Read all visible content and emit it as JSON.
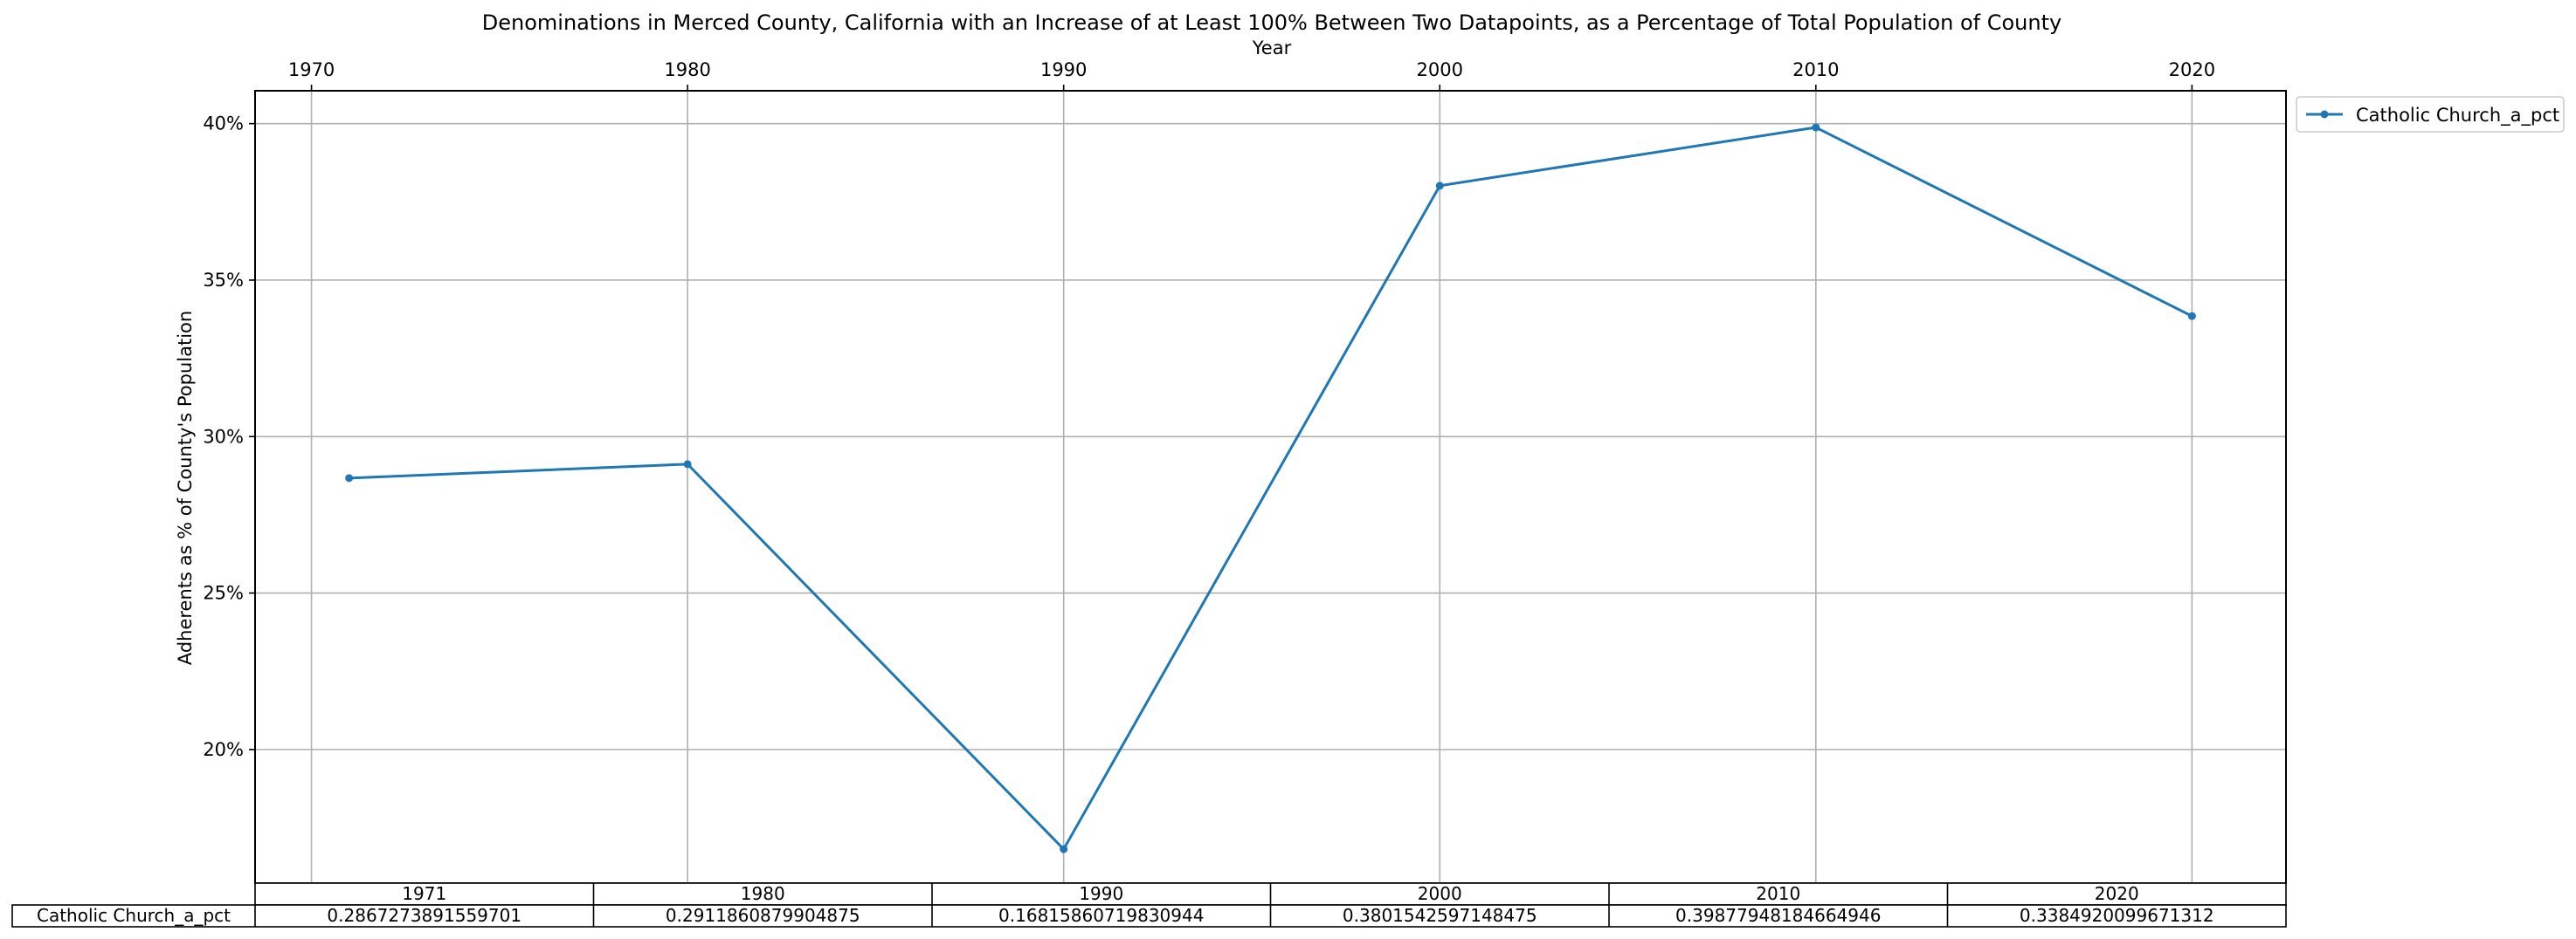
{
  "chart_data": {
    "type": "line",
    "title": "Denominations in Merced County, California with an Increase of at Least 100% Between Two Datapoints, as a Percentage of Total Population of County",
    "xlabel": "Year",
    "ylabel": "Adherents as % of County's Population",
    "x_ticks": [
      "1970",
      "1980",
      "1990",
      "2000",
      "2010",
      "2020"
    ],
    "x_tick_values": [
      1970,
      1980,
      1990,
      2000,
      2010,
      2020
    ],
    "y_ticks": [
      "20%",
      "25%",
      "30%",
      "35%",
      "40%"
    ],
    "y_tick_values": [
      0.2,
      0.25,
      0.3,
      0.35,
      0.4
    ],
    "xlim": [
      1968.5,
      2022.5
    ],
    "ylim": [
      0.1573,
      0.4105
    ],
    "grid": true,
    "x_axis_position": "top",
    "legend_position": "outside-top-right",
    "color": "#1f77b4",
    "x": [
      1971,
      1980,
      1990,
      2000,
      2010,
      2020
    ],
    "series": [
      {
        "name": "Catholic Church_a_pct",
        "values": [
          0.2867273891559701,
          0.2911860879904875,
          0.16815860719830944,
          0.3801542597148475,
          0.39877948184664946,
          0.3384920099671312
        ]
      }
    ],
    "table": {
      "columns": [
        "1971",
        "1980",
        "1990",
        "2000",
        "2010",
        "2020"
      ],
      "row_label": "Catholic Church_a_pct",
      "cells": [
        "0.2867273891559701",
        "0.2911860879904875",
        "0.16815860719830944",
        "0.3801542597148475",
        "0.39877948184664946",
        "0.3384920099671312"
      ]
    }
  }
}
